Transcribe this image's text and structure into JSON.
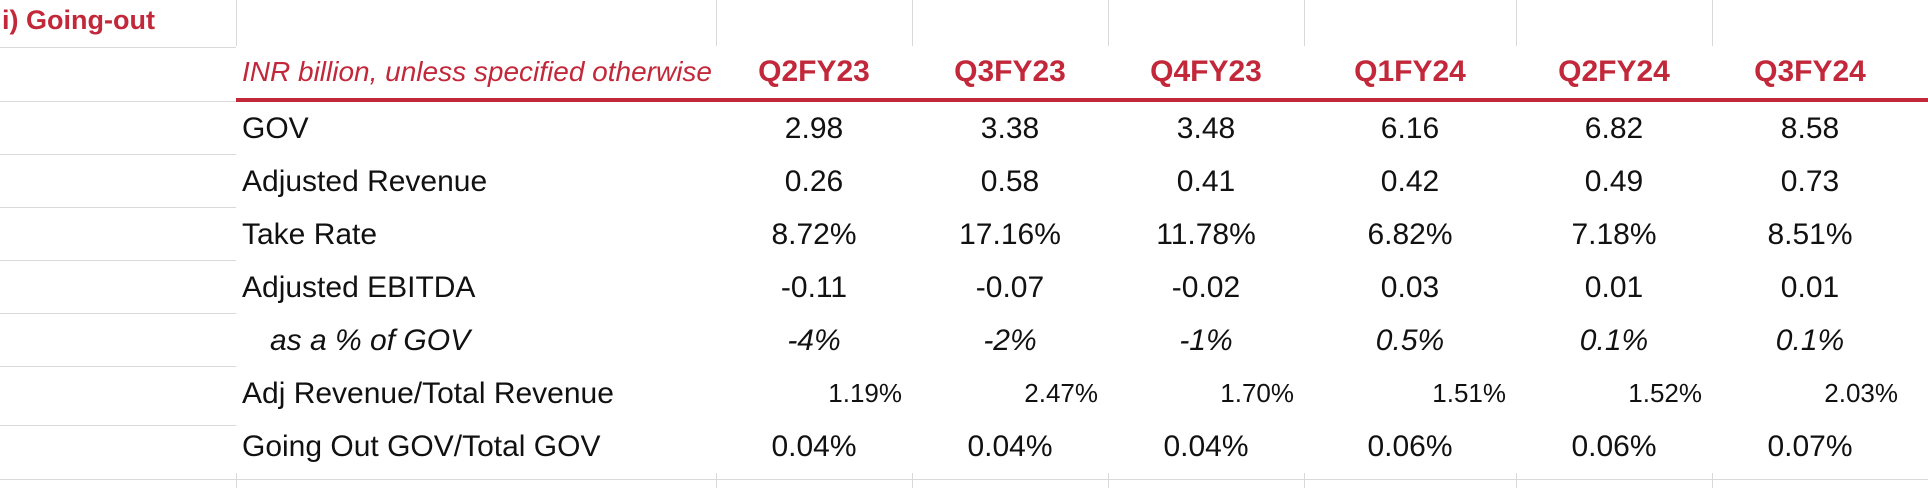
{
  "section_title": "i) Going-out",
  "header": {
    "label": "INR billion, unless specified otherwise",
    "quarters": [
      "Q2FY23",
      "Q3FY23",
      "Q4FY23",
      "Q1FY24",
      "Q2FY24",
      "Q3FY24"
    ]
  },
  "rows": [
    {
      "label": "GOV",
      "values": [
        "2.98",
        "3.38",
        "3.48",
        "6.16",
        "6.82",
        "8.58"
      ]
    },
    {
      "label": "Adjusted Revenue",
      "values": [
        "0.26",
        "0.58",
        "0.41",
        "0.42",
        "0.49",
        "0.73"
      ]
    },
    {
      "label": "Take Rate",
      "values": [
        "8.72%",
        "17.16%",
        "11.78%",
        "6.82%",
        "7.18%",
        "8.51%"
      ]
    },
    {
      "label": "Adjusted EBITDA",
      "values": [
        "-0.11",
        "-0.07",
        "-0.02",
        "0.03",
        "0.01",
        "0.01"
      ]
    },
    {
      "label": "as a % of GOV",
      "values": [
        "-4%",
        "-2%",
        "-1%",
        "0.5%",
        "0.1%",
        "0.1%"
      ]
    },
    {
      "label": "Adj Revenue/Total Revenue",
      "values": [
        "1.19%",
        "2.47%",
        "1.70%",
        "1.51%",
        "1.52%",
        "2.03%"
      ]
    },
    {
      "label": "Going Out GOV/Total GOV",
      "values": [
        "0.04%",
        "0.04%",
        "0.04%",
        "0.06%",
        "0.06%",
        "0.07%"
      ]
    }
  ]
}
